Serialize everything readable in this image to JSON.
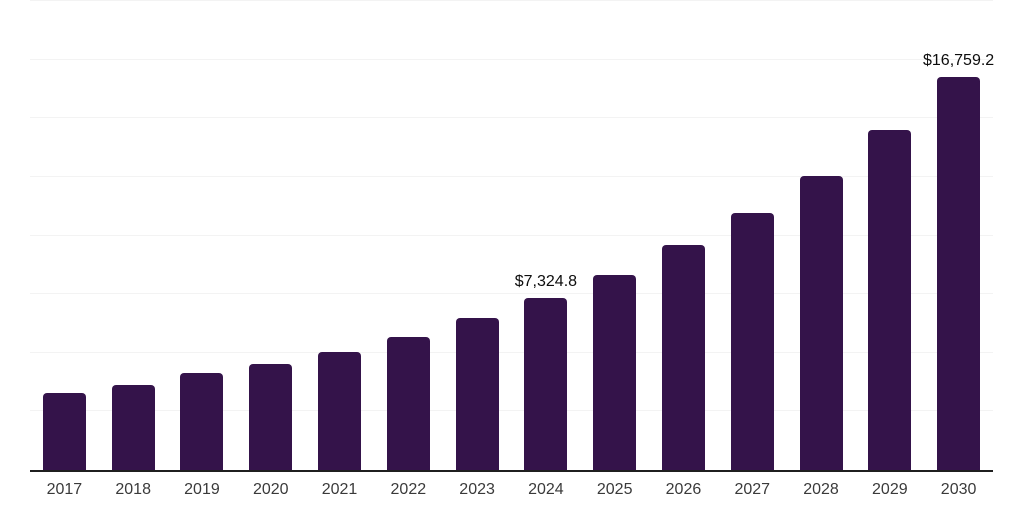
{
  "chart_data": {
    "type": "bar",
    "title": "",
    "categories": [
      "2017",
      "2018",
      "2019",
      "2020",
      "2021",
      "2022",
      "2023",
      "2024",
      "2025",
      "2026",
      "2027",
      "2028",
      "2029",
      "2030"
    ],
    "values": [
      3280,
      3620,
      4140,
      4520,
      5030,
      5670,
      6480,
      7324.8,
      8320,
      9590,
      10960,
      12540,
      14500,
      16759.2
    ],
    "value_labels": [
      null,
      null,
      null,
      null,
      null,
      null,
      null,
      "$7,324.8",
      null,
      null,
      null,
      null,
      null,
      "$16,759.2"
    ],
    "xlabel": "",
    "ylabel": "",
    "ylim": [
      0,
      20000
    ],
    "gridline_step": 2500,
    "grid": "horizontal-only",
    "legend": "none",
    "y_axis_tick_labels": "none",
    "colors": {
      "bar": "#34134A",
      "gridline": "#f3f3f3",
      "axis_line": "#1f1f1f",
      "x_tick_label": "#3a3a3a",
      "value_label": "#0d0d0d",
      "background": "#ffffff"
    }
  }
}
